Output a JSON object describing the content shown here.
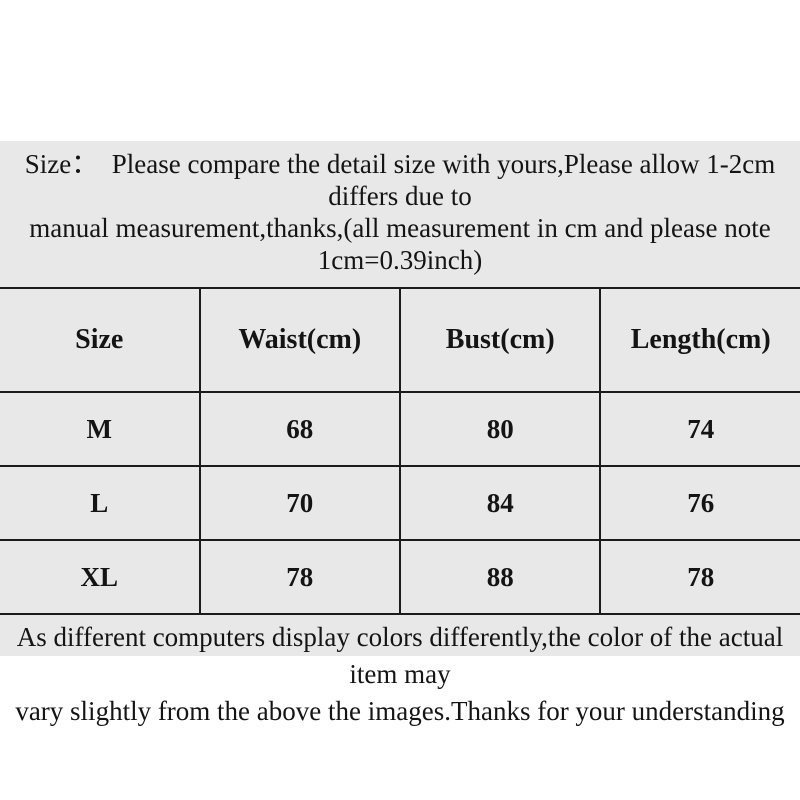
{
  "notice": {
    "lines": [
      "Size：  Please compare the detail size with yours,Please allow 1-2cm differs due to",
      "manual measurement,thanks,(all measurement in cm and please note",
      "1cm=0.39inch)"
    ]
  },
  "size_table": {
    "columns": [
      "Size",
      "Waist(cm)",
      "Bust(cm)",
      "Length(cm)"
    ],
    "rows": [
      {
        "size": "M",
        "waist": "68",
        "bust": "80",
        "length": "74"
      },
      {
        "size": "L",
        "waist": "70",
        "bust": "84",
        "length": "76"
      },
      {
        "size": "XL",
        "waist": "78",
        "bust": "88",
        "length": "78"
      }
    ]
  },
  "disclaimer": {
    "lines": [
      "As different computers display colors differently,the color of the actual item may",
      "vary slightly from the above the images.Thanks for your understanding"
    ]
  },
  "colors": {
    "page_bg": "#ffffff",
    "panel_bg": "#e8e8e8",
    "text": "#141414",
    "table_border": "#1b1b1b"
  }
}
